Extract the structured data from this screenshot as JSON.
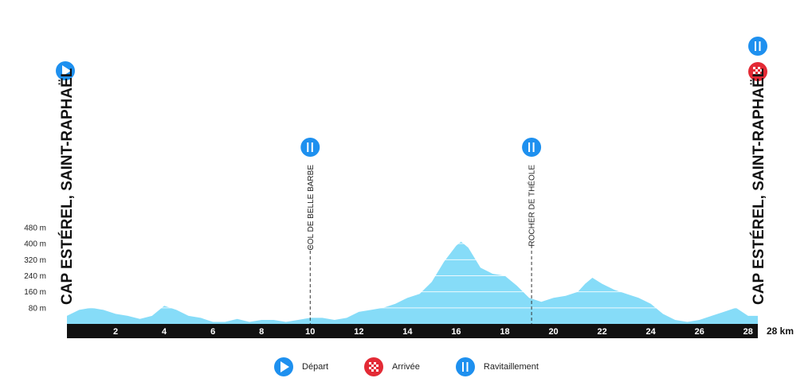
{
  "start_location": "CAP ESTÉREL, SAINT-RAPHAËL",
  "finish_location": "CAP ESTÉREL, SAINT-RAPHAËL",
  "checkpoints": [
    {
      "name": "COL DE BELLE BARBE",
      "km": 10.0,
      "icon": "feed-icon"
    },
    {
      "name": "ROCHER DE THÉOLE",
      "km": 19.1,
      "icon": "feed-icon"
    }
  ],
  "legend": [
    {
      "label": "Départ",
      "icon": "start-icon"
    },
    {
      "label": "Arrivée",
      "icon": "finish-icon"
    },
    {
      "label": "Ravitaillement",
      "icon": "feed-icon"
    }
  ],
  "colors": {
    "profile": "#86dcf8",
    "icon_blue": "#1e90ef",
    "finish_red": "#e32a35",
    "axis": "#111111"
  },
  "chart_data": {
    "type": "area",
    "x_unit_label": "28 km",
    "xlim": [
      0,
      28.4
    ],
    "ylim": [
      0,
      480
    ],
    "x_ticks": [
      2,
      4,
      6,
      8,
      10,
      12,
      14,
      16,
      18,
      20,
      22,
      24,
      26,
      28
    ],
    "y_ticks": [
      {
        "value": 80,
        "label": "80 m"
      },
      {
        "value": 160,
        "label": "160 m"
      },
      {
        "value": 240,
        "label": "240 m"
      },
      {
        "value": 320,
        "label": "320 m"
      },
      {
        "value": 400,
        "label": "400 m"
      },
      {
        "value": 480,
        "label": "480 m"
      }
    ],
    "x": [
      0,
      0.5,
      1,
      1.5,
      2,
      2.5,
      3,
      3.5,
      4,
      4.5,
      5,
      5.5,
      6,
      6.5,
      7,
      7.5,
      8,
      8.5,
      9,
      9.5,
      10,
      10.5,
      11,
      11.5,
      12,
      12.5,
      13,
      13.5,
      14,
      14.5,
      15,
      15.5,
      16,
      16.2,
      16.5,
      17,
      17.5,
      18,
      18.5,
      19,
      19.5,
      20,
      20.5,
      21,
      21.3,
      21.6,
      22,
      22.5,
      23,
      23.5,
      24,
      24.5,
      25,
      25.5,
      26,
      26.5,
      27,
      27.5,
      28,
      28.4
    ],
    "y": [
      40,
      70,
      80,
      70,
      50,
      40,
      25,
      40,
      90,
      70,
      40,
      30,
      10,
      10,
      25,
      10,
      20,
      20,
      10,
      20,
      30,
      30,
      20,
      30,
      60,
      70,
      80,
      100,
      130,
      150,
      210,
      310,
      390,
      410,
      380,
      280,
      250,
      240,
      190,
      130,
      110,
      130,
      140,
      160,
      200,
      230,
      200,
      170,
      150,
      130,
      100,
      50,
      20,
      10,
      20,
      40,
      60,
      80,
      40,
      40
    ]
  }
}
